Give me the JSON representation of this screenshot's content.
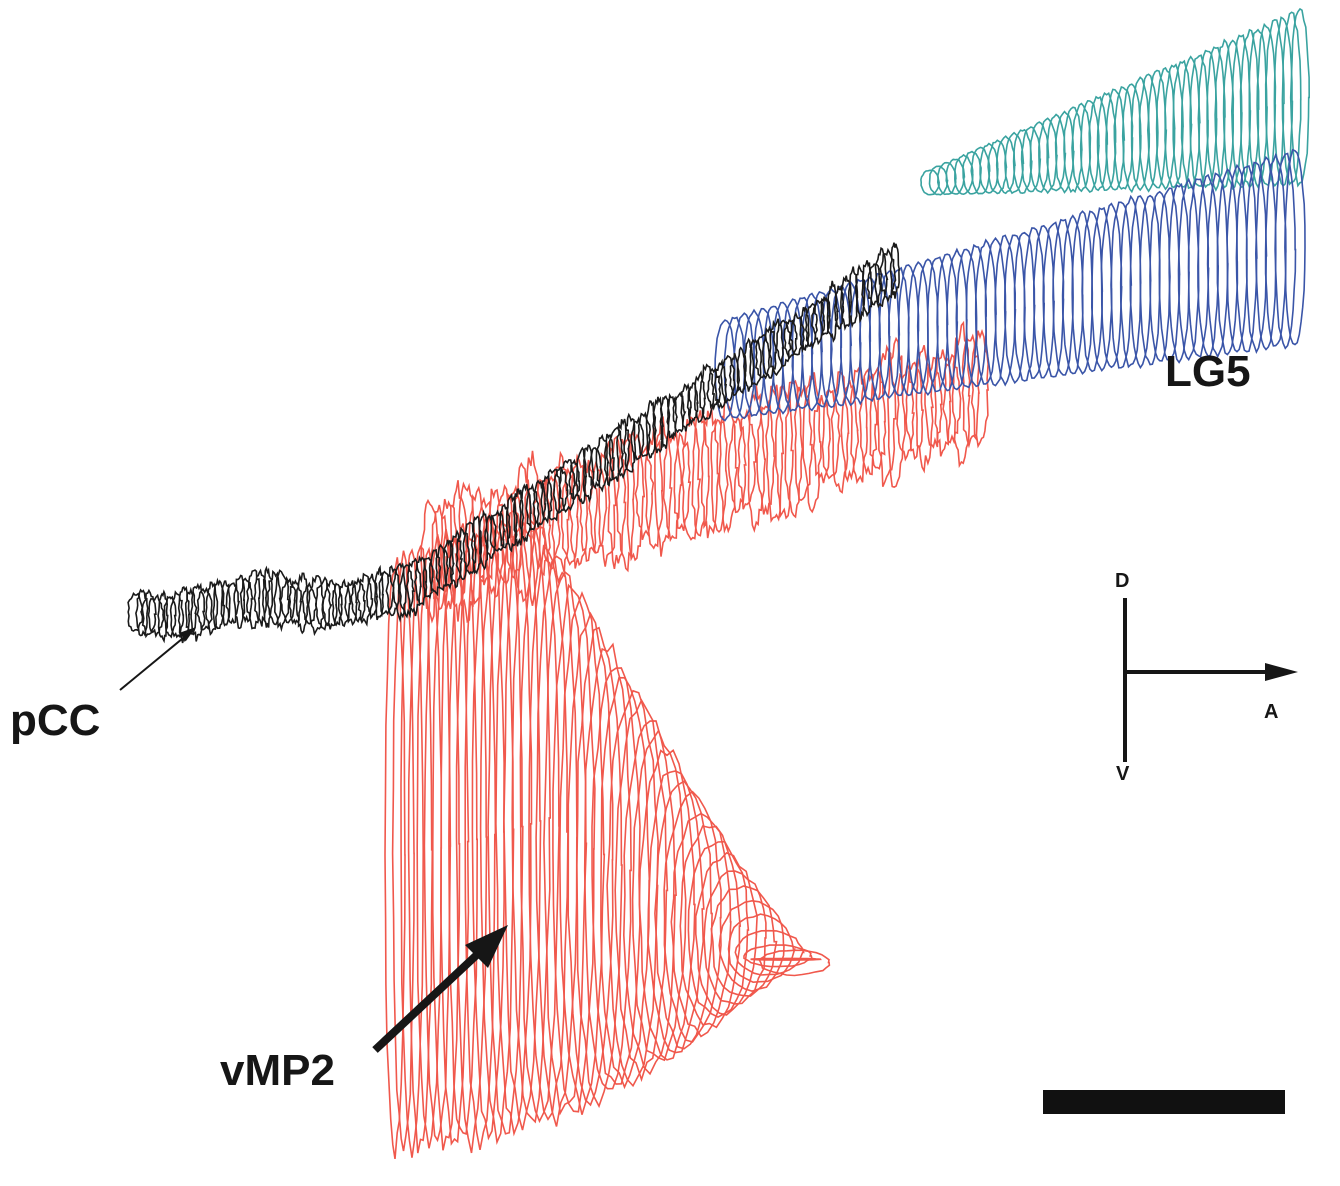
{
  "labels": {
    "pcc": "pCC",
    "vmp2": "vMP2",
    "lg5": "LG5"
  },
  "orientation": {
    "dorsal": "D",
    "ventral": "V",
    "anterior": "A"
  }
}
